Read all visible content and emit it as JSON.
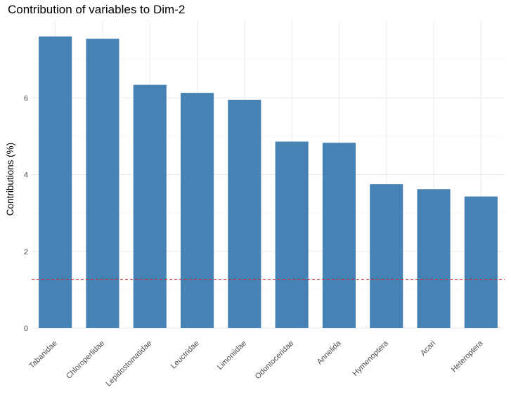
{
  "chart_data": {
    "type": "bar",
    "title": "Contribution of variables to Dim-2",
    "xlabel": "",
    "ylabel": "Contributions (%)",
    "categories": [
      "Tabanidae",
      "Chloroperlidae",
      "Lepidostomatidae",
      "Leuctridae",
      "Limoniidae",
      "Odontoceridae",
      "Annelida",
      "Hymenoptera",
      "Acari",
      "Heteroptera"
    ],
    "values": [
      7.6,
      7.54,
      6.34,
      6.13,
      5.95,
      4.86,
      4.83,
      3.75,
      3.62,
      3.43
    ],
    "ylim": [
      0,
      8.0
    ],
    "yticks": [
      0,
      2,
      4,
      6
    ],
    "reference_line": {
      "value": 1.27,
      "style": "dashed",
      "color": "#cd2626"
    },
    "bar_color": "#4682b4",
    "grid": true,
    "legend": "none"
  }
}
